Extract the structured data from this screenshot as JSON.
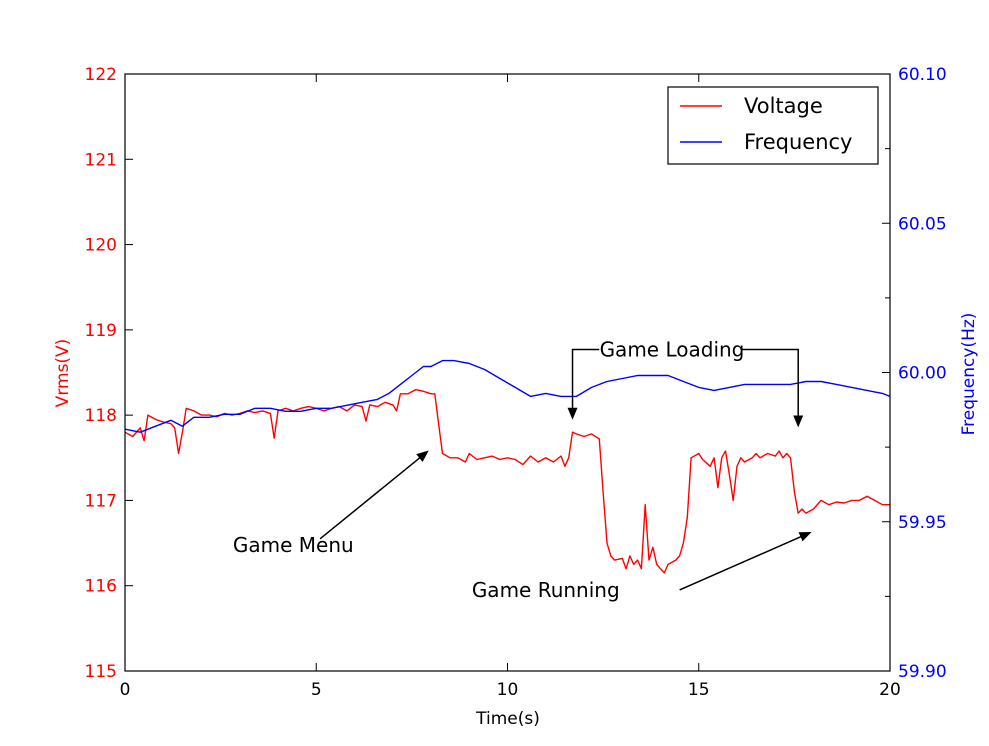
{
  "chart_data": {
    "type": "line",
    "title": "",
    "xlabel": "Time(s)",
    "ylabel_left": "Vrms(V)",
    "ylabel_right": "Frequency(Hz)",
    "xlim": [
      0,
      20
    ],
    "ylim_left": [
      115,
      122
    ],
    "ylim_right": [
      59.9,
      60.1
    ],
    "x_ticks": [
      0,
      5,
      10,
      15,
      20
    ],
    "x_tick_labels": [
      "0",
      "5",
      "10",
      "15",
      "20"
    ],
    "y_left_ticks": [
      115,
      116,
      117,
      118,
      119,
      120,
      121,
      122
    ],
    "y_left_tick_labels": [
      "115",
      "116",
      "117",
      "118",
      "119",
      "120",
      "121",
      "122"
    ],
    "y_right_ticks": [
      59.9,
      59.95,
      60.0,
      60.05,
      60.1
    ],
    "y_right_tick_labels": [
      "59.90",
      "59.95",
      "60.00",
      "60.05",
      "60.10"
    ],
    "grid": false,
    "legend_position": "top-right",
    "colors": {
      "voltage": "#ff0000",
      "frequency": "#0000ff"
    },
    "series": [
      {
        "name": "Voltage",
        "axis": "left",
        "points": [
          [
            0.0,
            117.8
          ],
          [
            0.2,
            117.75
          ],
          [
            0.4,
            117.85
          ],
          [
            0.5,
            117.7
          ],
          [
            0.6,
            118.0
          ],
          [
            0.8,
            117.95
          ],
          [
            1.0,
            117.92
          ],
          [
            1.2,
            117.9
          ],
          [
            1.3,
            117.85
          ],
          [
            1.4,
            117.55
          ],
          [
            1.5,
            117.8
          ],
          [
            1.6,
            118.08
          ],
          [
            1.8,
            118.05
          ],
          [
            2.0,
            118.0
          ],
          [
            2.2,
            118.0
          ],
          [
            2.4,
            117.98
          ],
          [
            2.6,
            118.02
          ],
          [
            2.8,
            118.0
          ],
          [
            3.0,
            118.02
          ],
          [
            3.2,
            118.05
          ],
          [
            3.4,
            118.03
          ],
          [
            3.6,
            118.05
          ],
          [
            3.8,
            118.02
          ],
          [
            3.9,
            117.73
          ],
          [
            4.0,
            118.05
          ],
          [
            4.2,
            118.08
          ],
          [
            4.4,
            118.05
          ],
          [
            4.6,
            118.08
          ],
          [
            4.8,
            118.1
          ],
          [
            5.0,
            118.08
          ],
          [
            5.2,
            118.05
          ],
          [
            5.4,
            118.08
          ],
          [
            5.6,
            118.1
          ],
          [
            5.8,
            118.05
          ],
          [
            6.0,
            118.12
          ],
          [
            6.2,
            118.1
          ],
          [
            6.3,
            117.93
          ],
          [
            6.4,
            118.12
          ],
          [
            6.6,
            118.1
          ],
          [
            6.8,
            118.15
          ],
          [
            7.0,
            118.12
          ],
          [
            7.1,
            118.05
          ],
          [
            7.2,
            118.25
          ],
          [
            7.4,
            118.25
          ],
          [
            7.6,
            118.3
          ],
          [
            7.8,
            118.28
          ],
          [
            8.0,
            118.25
          ],
          [
            8.1,
            118.25
          ],
          [
            8.2,
            117.9
          ],
          [
            8.3,
            117.55
          ],
          [
            8.5,
            117.5
          ],
          [
            8.7,
            117.5
          ],
          [
            8.9,
            117.45
          ],
          [
            9.0,
            117.55
          ],
          [
            9.2,
            117.48
          ],
          [
            9.4,
            117.5
          ],
          [
            9.6,
            117.52
          ],
          [
            9.8,
            117.48
          ],
          [
            10.0,
            117.5
          ],
          [
            10.2,
            117.48
          ],
          [
            10.4,
            117.42
          ],
          [
            10.6,
            117.52
          ],
          [
            10.8,
            117.45
          ],
          [
            11.0,
            117.5
          ],
          [
            11.2,
            117.45
          ],
          [
            11.4,
            117.52
          ],
          [
            11.5,
            117.4
          ],
          [
            11.6,
            117.5
          ],
          [
            11.7,
            117.8
          ],
          [
            11.8,
            117.78
          ],
          [
            12.0,
            117.75
          ],
          [
            12.2,
            117.78
          ],
          [
            12.4,
            117.72
          ],
          [
            12.5,
            117.1
          ],
          [
            12.6,
            116.5
          ],
          [
            12.7,
            116.35
          ],
          [
            12.8,
            116.3
          ],
          [
            13.0,
            116.32
          ],
          [
            13.1,
            116.2
          ],
          [
            13.2,
            116.35
          ],
          [
            13.3,
            116.25
          ],
          [
            13.4,
            116.3
          ],
          [
            13.5,
            116.2
          ],
          [
            13.6,
            116.95
          ],
          [
            13.7,
            116.3
          ],
          [
            13.8,
            116.45
          ],
          [
            13.9,
            116.25
          ],
          [
            14.0,
            116.2
          ],
          [
            14.1,
            116.15
          ],
          [
            14.2,
            116.25
          ],
          [
            14.4,
            116.3
          ],
          [
            14.5,
            116.35
          ],
          [
            14.6,
            116.5
          ],
          [
            14.7,
            116.8
          ],
          [
            14.8,
            117.5
          ],
          [
            15.0,
            117.55
          ],
          [
            15.1,
            117.48
          ],
          [
            15.3,
            117.4
          ],
          [
            15.4,
            117.5
          ],
          [
            15.5,
            117.15
          ],
          [
            15.6,
            117.5
          ],
          [
            15.7,
            117.58
          ],
          [
            15.8,
            117.3
          ],
          [
            15.9,
            117.0
          ],
          [
            16.0,
            117.4
          ],
          [
            16.1,
            117.5
          ],
          [
            16.2,
            117.45
          ],
          [
            16.4,
            117.5
          ],
          [
            16.5,
            117.55
          ],
          [
            16.6,
            117.5
          ],
          [
            16.8,
            117.55
          ],
          [
            17.0,
            117.52
          ],
          [
            17.1,
            117.58
          ],
          [
            17.2,
            117.5
          ],
          [
            17.3,
            117.55
          ],
          [
            17.4,
            117.5
          ],
          [
            17.5,
            117.1
          ],
          [
            17.6,
            116.85
          ],
          [
            17.7,
            116.9
          ],
          [
            17.8,
            116.85
          ],
          [
            18.0,
            116.9
          ],
          [
            18.2,
            117.0
          ],
          [
            18.4,
            116.95
          ],
          [
            18.6,
            116.98
          ],
          [
            18.8,
            116.97
          ],
          [
            19.0,
            117.0
          ],
          [
            19.2,
            117.0
          ],
          [
            19.4,
            117.05
          ],
          [
            19.6,
            117.0
          ],
          [
            19.8,
            116.95
          ],
          [
            20.0,
            116.95
          ]
        ]
      },
      {
        "name": "Frequency",
        "axis": "right",
        "points": [
          [
            0.0,
            59.981
          ],
          [
            0.4,
            59.98
          ],
          [
            0.8,
            59.982
          ],
          [
            1.2,
            59.984
          ],
          [
            1.5,
            59.982
          ],
          [
            1.8,
            59.985
          ],
          [
            2.2,
            59.985
          ],
          [
            2.6,
            59.986
          ],
          [
            3.0,
            59.986
          ],
          [
            3.4,
            59.988
          ],
          [
            3.8,
            59.988
          ],
          [
            4.2,
            59.987
          ],
          [
            4.6,
            59.987
          ],
          [
            5.0,
            59.988
          ],
          [
            5.4,
            59.988
          ],
          [
            5.8,
            59.989
          ],
          [
            6.2,
            59.99
          ],
          [
            6.6,
            59.991
          ],
          [
            6.9,
            59.993
          ],
          [
            7.2,
            59.996
          ],
          [
            7.5,
            59.999
          ],
          [
            7.8,
            60.002
          ],
          [
            8.0,
            60.002
          ],
          [
            8.3,
            60.004
          ],
          [
            8.6,
            60.004
          ],
          [
            9.0,
            60.003
          ],
          [
            9.4,
            60.001
          ],
          [
            9.8,
            59.998
          ],
          [
            10.2,
            59.995
          ],
          [
            10.6,
            59.992
          ],
          [
            11.0,
            59.993
          ],
          [
            11.4,
            59.992
          ],
          [
            11.8,
            59.992
          ],
          [
            12.2,
            59.995
          ],
          [
            12.6,
            59.997
          ],
          [
            13.0,
            59.998
          ],
          [
            13.4,
            59.999
          ],
          [
            13.8,
            59.999
          ],
          [
            14.2,
            59.999
          ],
          [
            14.6,
            59.997
          ],
          [
            15.0,
            59.995
          ],
          [
            15.4,
            59.994
          ],
          [
            15.8,
            59.995
          ],
          [
            16.2,
            59.996
          ],
          [
            16.6,
            59.996
          ],
          [
            17.0,
            59.996
          ],
          [
            17.4,
            59.996
          ],
          [
            17.8,
            59.997
          ],
          [
            18.2,
            59.997
          ],
          [
            18.6,
            59.996
          ],
          [
            19.0,
            59.995
          ],
          [
            19.4,
            59.994
          ],
          [
            19.8,
            59.993
          ],
          [
            20.0,
            59.992
          ]
        ]
      }
    ],
    "annotations": [
      {
        "text": "Game Menu",
        "arrows": [
          {
            "from": [
              5.1,
              116.55
            ],
            "to": [
              7.9,
              117.57
            ]
          }
        ],
        "text_pos": [
          4.4,
          116.48
        ]
      },
      {
        "text": "Game Running",
        "arrows": [
          {
            "from": [
              14.5,
              115.95
            ],
            "to": [
              17.9,
              116.62
            ]
          }
        ],
        "text_pos": [
          11.0,
          115.95
        ]
      },
      {
        "text": "Game Loading",
        "text_pos": [
          14.3,
          118.77
        ],
        "brackets": [
          {
            "from": [
              12.4,
              118.77
            ],
            "corner": [
              11.7,
              118.77
            ],
            "to": [
              11.7,
              117.97
            ]
          },
          {
            "from": [
              16.1,
              118.77
            ],
            "corner": [
              17.6,
              118.77
            ],
            "to": [
              17.6,
              117.88
            ]
          }
        ]
      }
    ]
  }
}
